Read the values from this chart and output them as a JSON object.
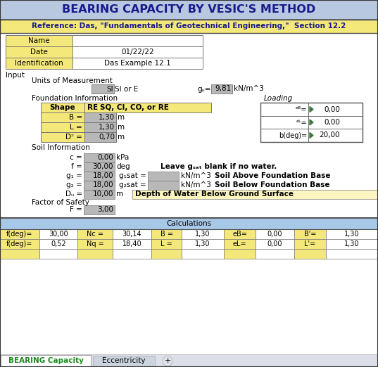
{
  "title": "BEARING CAPACITY BY VESIC'S METHOD",
  "subtitle": "Reference: Das, \"Fundamentals of Geotechnical Engineering,\"  Section 12.2",
  "title_bg": "#b8c8e0",
  "subtitle_bg": "#f5e87a",
  "yellow": "#f5e87a",
  "light_yellow": "#fdf5c0",
  "gray": "#b8b8b8",
  "white": "#ffffff",
  "calc_bg": "#a8c8e8",
  "tab_green": "#1a8a1a",
  "dark_navy": "#1a1a8a",
  "header_rows": [
    {
      "label": "Name",
      "value": ""
    },
    {
      "label": "Date",
      "value": "01/22/22"
    },
    {
      "label": "Identification",
      "value": "Das Example 12.1"
    }
  ],
  "calc_row1": [
    "f(deg)=",
    "30,00",
    "Nc =",
    "30,14",
    "B =",
    "1,30",
    "eB=",
    "0,00",
    "B'=",
    "1,30"
  ],
  "calc_row2": [
    "f(deg)=",
    "0,52",
    "Nq =",
    "18,40",
    "L =",
    "1,30",
    "eL=",
    "0,00",
    "L'=",
    "1,30"
  ],
  "calc_cols": [
    0,
    56,
    110,
    160,
    215,
    258,
    318,
    363,
    418,
    463,
    537
  ],
  "tab1": "BEARING Capacity",
  "tab2": "Eccentricity"
}
